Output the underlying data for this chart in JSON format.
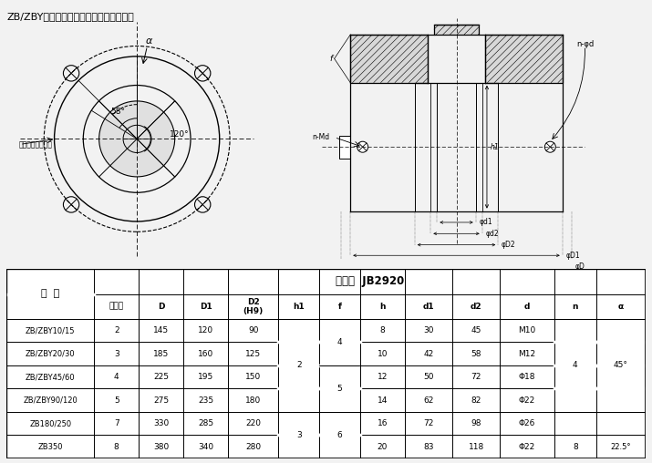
{
  "title": "ZB/ZBY与阀门连接的结构示意图及尺寸：",
  "table_header_main": "转矩型  JB2920",
  "col_headers": [
    "法兰号",
    "D",
    "D1",
    "D2\n(H9)",
    "h1",
    "f",
    "h",
    "d1",
    "d2",
    "d",
    "n",
    "α"
  ],
  "row_header": "型  号",
  "rows": [
    [
      "ZB/ZBY10/15",
      "2",
      "145",
      "120",
      "90",
      "",
      "4",
      "8",
      "30",
      "45",
      "M10",
      "",
      ""
    ],
    [
      "ZB/ZBY20/30",
      "3",
      "185",
      "160",
      "125",
      "2",
      "",
      "10",
      "42",
      "58",
      "M12",
      "",
      ""
    ],
    [
      "ZB/ZBY45/60",
      "4",
      "225",
      "195",
      "150",
      "",
      "5",
      "12",
      "50",
      "72",
      "Φ18",
      "4",
      "45°"
    ],
    [
      "ZB/ZBY90/120",
      "5",
      "275",
      "235",
      "180",
      "",
      "",
      "14",
      "62",
      "82",
      "Φ22",
      "",
      ""
    ],
    [
      "ZB180/250",
      "7",
      "330",
      "285",
      "220",
      "3",
      "6",
      "16",
      "72",
      "98",
      "Φ26",
      "",
      ""
    ],
    [
      "ZB350",
      "8",
      "380",
      "340",
      "280",
      "",
      "",
      "20",
      "83",
      "118",
      "Φ22",
      "8",
      "22.5°"
    ]
  ],
  "bg_color": "#f2f2f2",
  "font_color": "#000000"
}
